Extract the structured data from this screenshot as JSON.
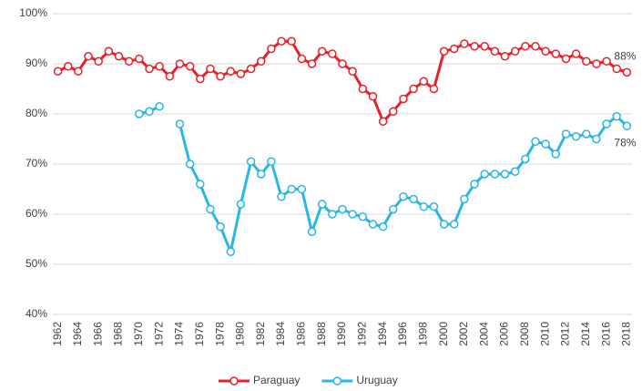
{
  "chart_data": {
    "type": "line",
    "categories": [
      "1962",
      null,
      "1964",
      null,
      "1966",
      null,
      "1968",
      null,
      "1970",
      null,
      "1972",
      null,
      "1974",
      null,
      "1976",
      null,
      "1978",
      null,
      "1980",
      null,
      "1982",
      null,
      "1984",
      null,
      "1986",
      null,
      "1988",
      null,
      "1990",
      null,
      "1992",
      null,
      "1994",
      null,
      "1996",
      null,
      "1998",
      null,
      "2000",
      null,
      "2002",
      null,
      "2004",
      null,
      "2006",
      null,
      "2008",
      null,
      "2010",
      null,
      "2012",
      null,
      "2014",
      null,
      "2016",
      null,
      "2018"
    ],
    "series": [
      {
        "name": "Paraguay",
        "color": "#e8202a",
        "values": [
          88.5,
          89.5,
          88.5,
          91.5,
          90.5,
          92.5,
          91.5,
          90.5,
          91,
          89,
          89.5,
          87.5,
          90,
          89.5,
          87,
          89,
          87.5,
          88.5,
          88,
          89,
          90.5,
          93,
          94.5,
          94.5,
          91,
          90,
          92.5,
          92,
          90,
          88.5,
          85,
          83.5,
          78.5,
          80.5,
          83,
          85,
          86.5,
          85,
          92.5,
          93,
          94,
          93.5,
          93.5,
          92.5,
          91.5,
          92.5,
          93.5,
          93.5,
          92.5,
          92,
          91,
          92,
          90.5,
          90,
          90.5,
          89,
          88.3
        ],
        "value_labels": [
          null,
          null,
          null,
          null,
          null,
          null,
          null,
          null,
          null,
          null,
          null,
          null,
          null,
          null,
          null,
          null,
          null,
          null,
          null,
          null,
          null,
          null,
          null,
          null,
          null,
          null,
          null,
          null,
          null,
          null,
          null,
          null,
          null,
          null,
          null,
          null,
          null,
          null,
          null,
          null,
          null,
          null,
          null,
          null,
          null,
          null,
          null,
          null,
          null,
          null,
          null,
          null,
          null,
          null,
          null,
          null,
          "88%"
        ]
      },
      {
        "name": "Uruguay",
        "color": "#29b6e6",
        "values": [
          null,
          null,
          null,
          null,
          null,
          null,
          null,
          null,
          80,
          80.5,
          81.5,
          null,
          78,
          70,
          66,
          61,
          57.5,
          52.5,
          62,
          70.5,
          68,
          70.5,
          63.5,
          65,
          65,
          56.5,
          62,
          60,
          61,
          60,
          59.5,
          58,
          57.5,
          61,
          63.5,
          63,
          61.5,
          61.5,
          58,
          58,
          63,
          66,
          68,
          68,
          68,
          68.5,
          71,
          74.5,
          74,
          72,
          76,
          75.5,
          76,
          75,
          78,
          79.5,
          77.6
        ],
        "value_labels": [
          null,
          null,
          null,
          null,
          null,
          null,
          null,
          null,
          null,
          null,
          null,
          null,
          null,
          null,
          null,
          null,
          null,
          null,
          null,
          null,
          null,
          null,
          null,
          null,
          null,
          null,
          null,
          null,
          null,
          null,
          null,
          null,
          null,
          null,
          null,
          null,
          null,
          null,
          null,
          null,
          null,
          null,
          null,
          null,
          null,
          null,
          null,
          null,
          null,
          null,
          null,
          null,
          null,
          null,
          null,
          null,
          "78%"
        ]
      }
    ],
    "ylim": [
      40,
      100
    ],
    "yticks": [
      {
        "value": 40,
        "label": "40%"
      },
      {
        "value": 50,
        "label": "50%"
      },
      {
        "value": 60,
        "label": "60%"
      },
      {
        "value": 70,
        "label": "70%"
      },
      {
        "value": 80,
        "label": "80%"
      },
      {
        "value": 90,
        "label": "90%"
      },
      {
        "value": 100,
        "label": "100%"
      }
    ],
    "grid": true,
    "legend": "bottom"
  }
}
